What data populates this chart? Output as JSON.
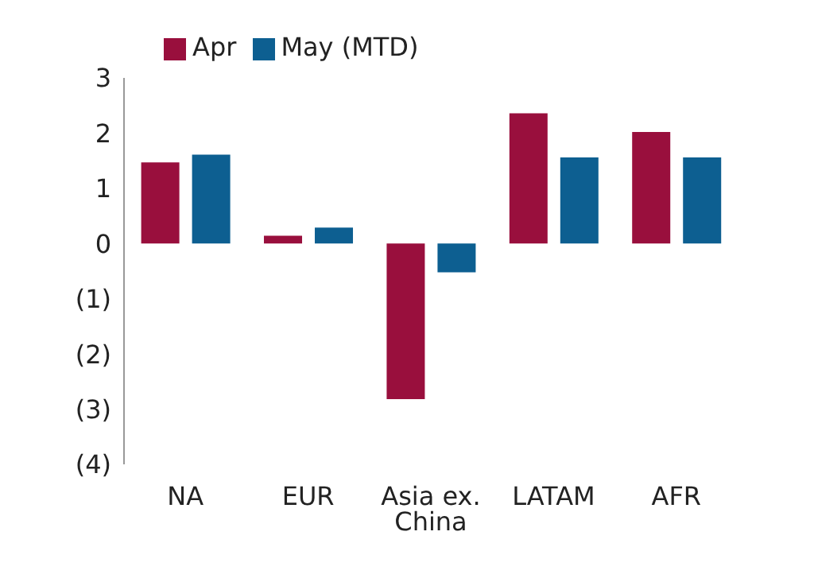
{
  "chart_data": {
    "type": "bar",
    "categories": [
      "NA",
      "EUR",
      "Asia ex. China",
      "LATAM",
      "AFR"
    ],
    "series": [
      {
        "name": "Apr",
        "color": "#990f3d",
        "values": [
          1.47,
          0.14,
          -2.82,
          2.36,
          2.02
        ]
      },
      {
        "name": "May (MTD)",
        "color": "#0d5f91",
        "values": [
          1.61,
          0.29,
          -0.52,
          1.56,
          1.56
        ]
      }
    ],
    "ylim": [
      -4,
      3
    ],
    "yticks": [
      {
        "value": -4,
        "label": "(4)"
      },
      {
        "value": -3,
        "label": "(3)"
      },
      {
        "value": -2,
        "label": "(2)"
      },
      {
        "value": -1,
        "label": "(1)"
      },
      0,
      1,
      2,
      3
    ],
    "grid": false,
    "legend": "top left"
  }
}
